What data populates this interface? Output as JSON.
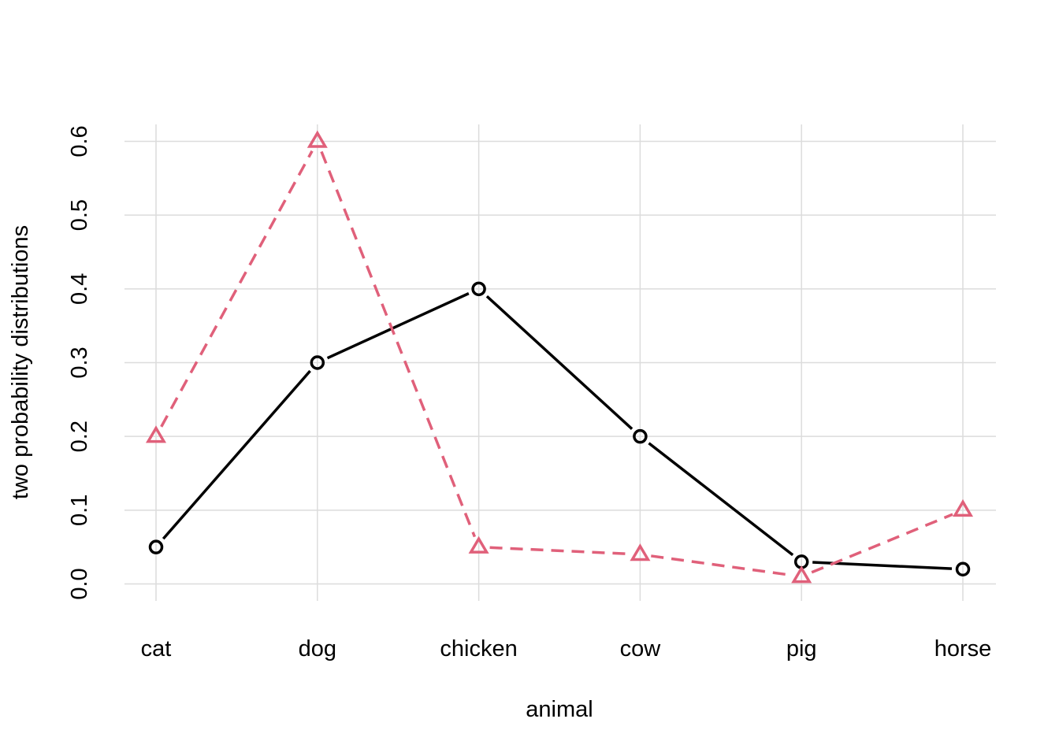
{
  "chart_data": {
    "type": "line",
    "title": "",
    "xlabel": "animal",
    "ylabel": "two probability distributions",
    "categories": [
      "cat",
      "dog",
      "chicken",
      "cow",
      "pig",
      "horse"
    ],
    "ylim": [
      0.0,
      0.6
    ],
    "yticks": [
      "0.0",
      "0.1",
      "0.2",
      "0.3",
      "0.4",
      "0.5",
      "0.6"
    ],
    "grid": true,
    "legend": "none",
    "series": [
      {
        "values": [
          0.05,
          0.3,
          0.4,
          0.2,
          0.03,
          0.02
        ],
        "color": "#000000",
        "line": "solid",
        "marker": "circle"
      },
      {
        "values": [
          0.2,
          0.6,
          0.05,
          0.04,
          0.01,
          0.1
        ],
        "color": "#e0607a",
        "line": "dashed",
        "marker": "triangle"
      }
    ]
  }
}
